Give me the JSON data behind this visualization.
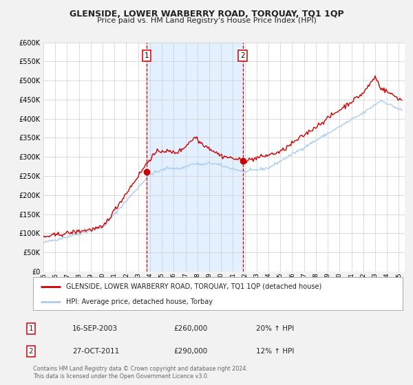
{
  "title": "GLENSIDE, LOWER WARBERRY ROAD, TORQUAY, TQ1 1QP",
  "subtitle": "Price paid vs. HM Land Registry's House Price Index (HPI)",
  "ylim": [
    0,
    600000
  ],
  "yticks": [
    0,
    50000,
    100000,
    150000,
    200000,
    250000,
    300000,
    350000,
    400000,
    450000,
    500000,
    550000,
    600000
  ],
  "xlim_start": 1995.0,
  "xlim_end": 2025.5,
  "bg_color": "#f2f2f2",
  "plot_bg": "#ffffff",
  "red_color": "#cc0000",
  "blue_color": "#aaccee",
  "marker_color": "#cc0000",
  "vline1_x": 2003.71,
  "vline2_x": 2011.82,
  "marker1_x": 2003.71,
  "marker1_y": 260000,
  "marker2_x": 2011.82,
  "marker2_y": 290000,
  "legend_label_red": "GLENSIDE, LOWER WARBERRY ROAD, TORQUAY, TQ1 1QP (detached house)",
  "legend_label_blue": "HPI: Average price, detached house, Torbay",
  "transaction1_date": "16-SEP-2003",
  "transaction1_price": "£260,000",
  "transaction1_hpi": "20% ↑ HPI",
  "transaction2_date": "27-OCT-2011",
  "transaction2_price": "£290,000",
  "transaction2_hpi": "12% ↑ HPI",
  "footer": "Contains HM Land Registry data © Crown copyright and database right 2024.\nThis data is licensed under the Open Government Licence v3.0.",
  "shade_color": "#ddeeff"
}
